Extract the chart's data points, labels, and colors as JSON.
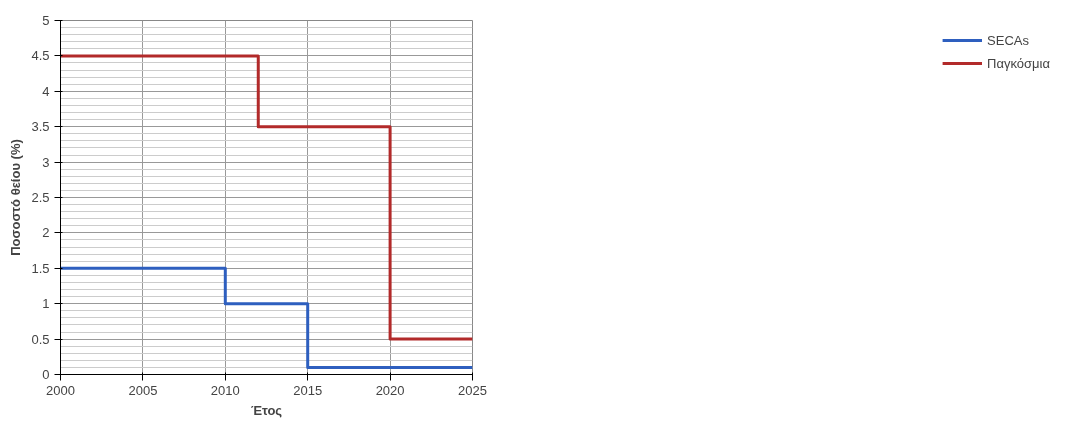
{
  "chart_data": {
    "type": "step",
    "xlabel": "Έτος",
    "ylabel": "Ποσοστό θείου (%)",
    "series": [
      {
        "name": "SECAs",
        "color": "#2e5fbf",
        "x": [
          2000,
          2010,
          2015,
          2025
        ],
        "values": [
          1.5,
          1,
          0.1,
          0.1
        ]
      },
      {
        "name": "Παγκόσμια",
        "color": "#b22a2a",
        "x": [
          2000,
          2012,
          2020,
          2025
        ],
        "values": [
          4.5,
          3.5,
          0.5,
          0.5
        ]
      }
    ],
    "xlim": [
      2000,
      2025
    ],
    "xticks": [
      2000,
      2005,
      2010,
      2015,
      2020,
      2025
    ],
    "ylim": [
      0,
      5
    ],
    "yticks": [
      0,
      0.5,
      1,
      1.5,
      2,
      2.5,
      3,
      3.5,
      4,
      4.5,
      5
    ],
    "grid": true,
    "legend": "right"
  }
}
